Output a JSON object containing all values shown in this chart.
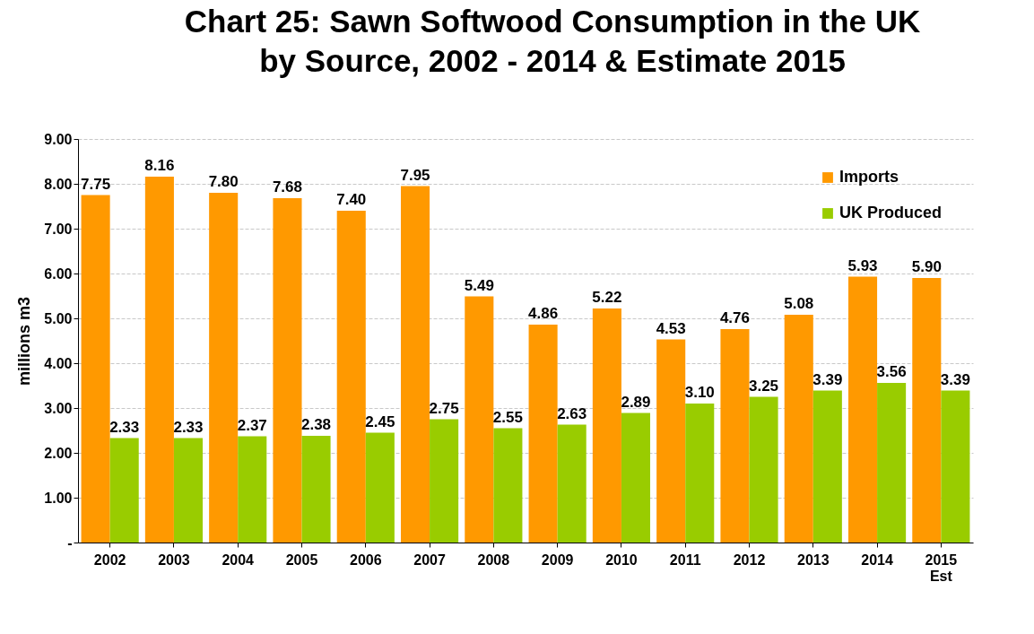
{
  "chart_data": {
    "type": "bar",
    "title": [
      "Chart 25: Sawn Softwood Consumption in the UK",
      "by Source, 2002 - 2014 & Estimate 2015"
    ],
    "ylabel": "millions m3",
    "categories": [
      "2002",
      "2003",
      "2004",
      "2005",
      "2006",
      "2007",
      "2008",
      "2009",
      "2010",
      "2011",
      "2012",
      "2013",
      "2014",
      "2015\nEst"
    ],
    "series": [
      {
        "name": "Imports",
        "color": "#ff9900",
        "values": [
          7.75,
          8.16,
          7.8,
          7.68,
          7.4,
          7.95,
          5.49,
          4.86,
          5.22,
          4.53,
          4.76,
          5.08,
          5.93,
          5.9
        ],
        "value_labels": [
          "7.75",
          "8.16",
          "7.80",
          "7.68",
          "7.40",
          "7.95",
          "5.49",
          "4.86",
          "5.22",
          "4.53",
          "4.76",
          "5.08",
          "5.93",
          "5.90"
        ]
      },
      {
        "name": "UK Produced",
        "color": "#99cc00",
        "values": [
          2.33,
          2.33,
          2.37,
          2.38,
          2.45,
          2.75,
          2.55,
          2.63,
          2.89,
          3.1,
          3.25,
          3.39,
          3.56,
          3.39
        ],
        "value_labels": [
          "2.33",
          "2.33",
          "2.37",
          "2.38",
          "2.45",
          "2.75",
          "2.55",
          "2.63",
          "2.89",
          "3.10",
          "3.25",
          "3.39",
          "3.56",
          "3.39"
        ]
      }
    ],
    "ylim": [
      0,
      9
    ],
    "yticks": [
      {
        "value": 0,
        "label": "-"
      },
      {
        "value": 1,
        "label": "1.00"
      },
      {
        "value": 2,
        "label": "2.00"
      },
      {
        "value": 3,
        "label": "3.00"
      },
      {
        "value": 4,
        "label": "4.00"
      },
      {
        "value": 5,
        "label": "5.00"
      },
      {
        "value": 6,
        "label": "6.00"
      },
      {
        "value": 7,
        "label": "7.00"
      },
      {
        "value": 8,
        "label": "8.00"
      },
      {
        "value": 9,
        "label": "9.00"
      }
    ],
    "grid": "y",
    "legend": "top right"
  }
}
